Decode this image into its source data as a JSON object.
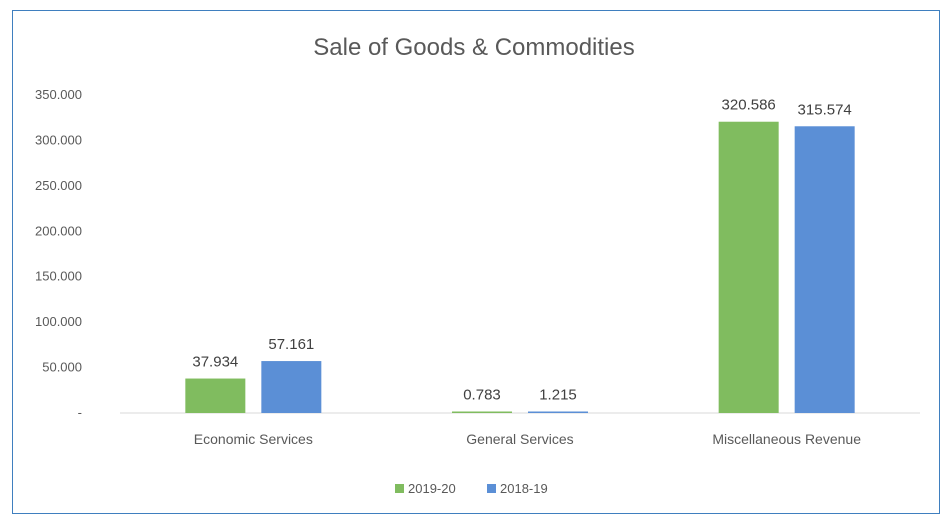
{
  "chart_data": {
    "type": "bar",
    "title": "Sale of Goods & Commodities",
    "categories": [
      "Economic Services",
      "General Services",
      "Miscellaneous Revenue"
    ],
    "series": [
      {
        "name": "2019-20",
        "values": [
          37.934,
          0.783,
          320.586
        ],
        "labels": [
          "37.934",
          "0.783",
          "320.586"
        ],
        "color": "#80bc5f"
      },
      {
        "name": "2018-19",
        "values": [
          57.161,
          1.215,
          315.574
        ],
        "labels": [
          "57.161",
          "1.215",
          "315.574"
        ],
        "color": "#5b8fd6"
      }
    ],
    "y_ticks": [
      {
        "value": 0,
        "label": "-"
      },
      {
        "value": 50,
        "label": "50.000"
      },
      {
        "value": 100,
        "label": "100.000"
      },
      {
        "value": 150,
        "label": "150.000"
      },
      {
        "value": 200,
        "label": "200.000"
      },
      {
        "value": 250,
        "label": "250.000"
      },
      {
        "value": 300,
        "label": "300.000"
      },
      {
        "value": 350,
        "label": "350.000"
      }
    ],
    "ylim": [
      0,
      350
    ],
    "grid": false,
    "legend_position": "bottom",
    "axis_color": "#d9d9d9"
  }
}
